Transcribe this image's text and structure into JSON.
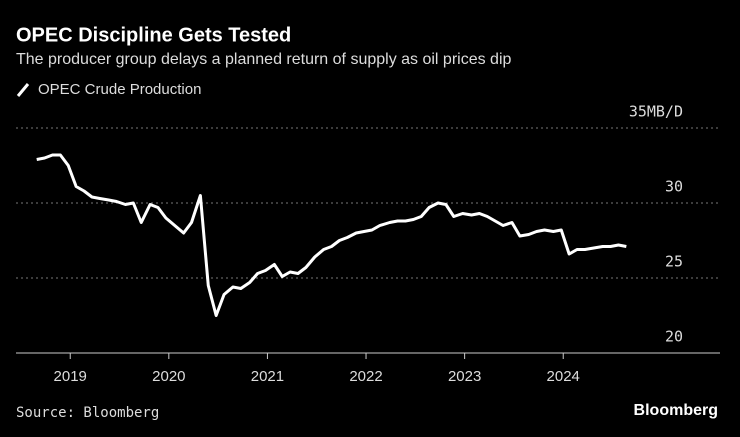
{
  "chart_data": {
    "type": "line",
    "title": "OPEC Discipline Gets Tested",
    "subtitle": "The producer group delays a planned return of supply as oil prices dip",
    "source": "Source: Bloomberg",
    "brand": "Bloomberg",
    "x": [
      2018.66,
      2018.74,
      2018.82,
      2018.9,
      2018.98,
      2019.06,
      2019.14,
      2019.22,
      2019.3,
      2019.39,
      2019.47,
      2019.56,
      2019.64,
      2019.72,
      2019.81,
      2019.89,
      2019.97,
      2020.06,
      2020.15,
      2020.23,
      2020.32,
      2020.4,
      2020.48,
      2020.56,
      2020.65,
      2020.73,
      2020.82,
      2020.9,
      2020.98,
      2021.07,
      2021.15,
      2021.23,
      2021.31,
      2021.39,
      2021.48,
      2021.57,
      2021.65,
      2021.73,
      2021.81,
      2021.9,
      2021.98,
      2022.06,
      2022.14,
      2022.24,
      2022.32,
      2022.4,
      2022.48,
      2022.56,
      2022.64,
      2022.73,
      2022.81,
      2022.89,
      2022.98,
      2023.07,
      2023.15,
      2023.23,
      2023.31,
      2023.39,
      2023.48,
      2023.56,
      2023.65,
      2023.73,
      2023.81,
      2023.9,
      2023.98,
      2024.06,
      2024.14,
      2024.22,
      2024.31,
      2024.4,
      2024.48,
      2024.56,
      2024.64
    ],
    "series": [
      {
        "name": "OPEC Crude Production",
        "color": "#ffffff",
        "values": [
          32.9,
          33.0,
          33.2,
          33.2,
          32.5,
          31.1,
          30.8,
          30.4,
          30.3,
          30.2,
          30.1,
          29.9,
          30.0,
          28.7,
          29.9,
          29.7,
          29.0,
          28.5,
          28.0,
          28.7,
          30.5,
          24.5,
          22.5,
          23.9,
          24.4,
          24.3,
          24.7,
          25.3,
          25.5,
          25.9,
          25.1,
          25.4,
          25.3,
          25.7,
          26.4,
          26.9,
          27.1,
          27.5,
          27.7,
          28.0,
          28.1,
          28.2,
          28.5,
          28.7,
          28.8,
          28.8,
          28.9,
          29.1,
          29.7,
          30.0,
          29.9,
          29.1,
          29.3,
          29.2,
          29.3,
          29.1,
          28.8,
          28.5,
          28.7,
          27.8,
          27.9,
          28.1,
          28.2,
          28.1,
          28.2,
          26.6,
          26.9,
          26.9,
          27.0,
          27.1,
          27.1,
          27.2,
          27.1
        ]
      }
    ],
    "xlim": [
      2018.45,
      2025.59
    ],
    "xticks": [
      2019,
      2020,
      2021,
      2022,
      2023,
      2024
    ],
    "ylim": [
      20,
      35
    ],
    "yticks": [
      20,
      25,
      30,
      {
        "value": 35,
        "label": "35MB/D"
      }
    ],
    "grid": true
  }
}
